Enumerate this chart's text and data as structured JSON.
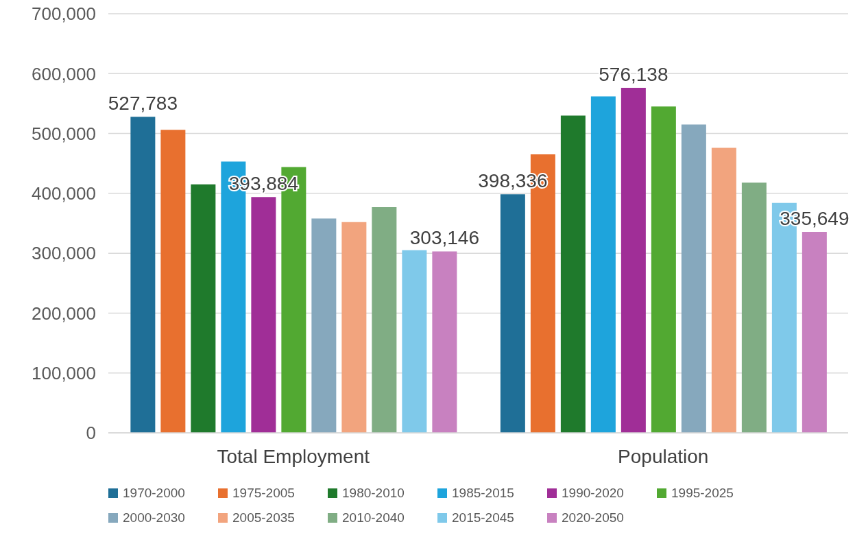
{
  "chart_data": {
    "type": "bar",
    "categories": [
      "Total Employment",
      "Population"
    ],
    "series": [
      {
        "name": "1970-2000",
        "color": "#1f6f97",
        "values": [
          527783,
          398336
        ],
        "value_labels": [
          "527,783",
          "398,336"
        ]
      },
      {
        "name": "1975-2005",
        "color": "#e8702f",
        "values": [
          506000,
          465000
        ]
      },
      {
        "name": "1980-2010",
        "color": "#1f7a2c",
        "values": [
          415000,
          530000
        ]
      },
      {
        "name": "1985-2015",
        "color": "#1ea4dc",
        "values": [
          453000,
          562000
        ]
      },
      {
        "name": "1990-2020",
        "color": "#a02e97",
        "values": [
          393884,
          576138
        ],
        "value_labels": [
          "393,884",
          "576,138"
        ]
      },
      {
        "name": "1995-2025",
        "color": "#52a932",
        "values": [
          444000,
          545000
        ]
      },
      {
        "name": "2000-2030",
        "color": "#86a8bd",
        "values": [
          358000,
          515000
        ]
      },
      {
        "name": "2005-2035",
        "color": "#f2a47e",
        "values": [
          352000,
          476000
        ]
      },
      {
        "name": "2010-2040",
        "color": "#80ad84",
        "values": [
          377000,
          418000
        ]
      },
      {
        "name": "2015-2045",
        "color": "#7fc9ea",
        "values": [
          305000,
          384000
        ]
      },
      {
        "name": "2020-2050",
        "color": "#c881c0",
        "values": [
          303146,
          335649
        ],
        "value_labels": [
          "303,146",
          "335,649"
        ]
      }
    ],
    "ylim": [
      0,
      700000
    ],
    "yticks": [
      0,
      {
        "value": 100000,
        "label": "100,000"
      },
      {
        "value": 200000,
        "label": "200,000"
      },
      {
        "value": 300000,
        "label": "300,000"
      },
      {
        "value": 400000,
        "label": "400,000"
      },
      {
        "value": 500000,
        "label": "500,000"
      },
      {
        "value": 600000,
        "label": "600,000"
      },
      {
        "value": 700000,
        "label": "700,000"
      }
    ],
    "grid": "y",
    "legend": "bottom"
  }
}
